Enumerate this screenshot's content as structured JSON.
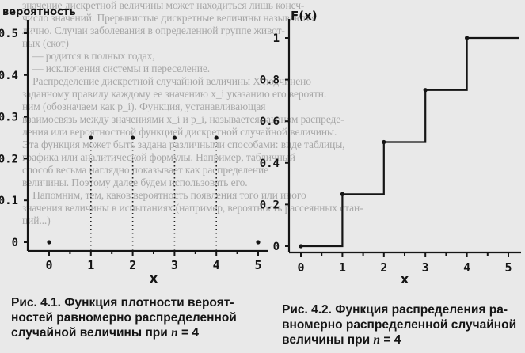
{
  "background_text": [
    "значение дискретной величины может находиться лишь конеч-",
    "число значений. Прерывистые дискретные величины называются",
    "лично. Случаи заболевания в определенной группе живот-",
    "ных (скот)",
    "    — родится в полных годах,",
    "    — исключения системы и переселение.",
    "    Распределение дискретной случайной величины Х подчинено",
    "заданному правилу каждому ее значению x_i указанию его вероятн.",
    "ним (обозначаем как p_i). Функция, устанавливающая",
    "взаимосвязь между значениями x_i и p_i, называется законом распреде-",
    "ления или вероятностной функцией дискретной случайной величины.",
    "Эта функция может быть задана различными способами: виде таблицы,",
    "графика или аналитической формулы. Например, табличный",
    "способ весьма наглядно показывает как распределение",
    "величины. Поэтому далее будем использовать его.",
    "    Напомним, тем, каков вероятность появления того или иного",
    "значения величины в испытаниях (например, вероятность рассеянных стан-",
    "ций...)"
  ],
  "charts": [
    {
      "type": "scatter",
      "ylabel": "вероятность",
      "xlabel": "x",
      "xlim": [
        0,
        5
      ],
      "ylim": [
        0,
        0.5
      ],
      "x_ticks": [
        "0",
        "1",
        "2",
        "3",
        "4",
        "5"
      ],
      "y_ticks": [
        "0",
        "0.1",
        "0.2",
        "0.3",
        "0.4",
        "0.5"
      ],
      "points": [
        {
          "x": 0,
          "y": 0
        },
        {
          "x": 1,
          "y": 0.25
        },
        {
          "x": 2,
          "y": 0.25
        },
        {
          "x": 3,
          "y": 0.25
        },
        {
          "x": 4,
          "y": 0.25
        },
        {
          "x": 5,
          "y": 0
        }
      ],
      "dotted_drop_lines": true,
      "caption": {
        "fig": "Рис. 4.1.",
        "text_line1": " Функция плотности вероят-",
        "text_line2": "ностей равномерно распределенной",
        "text_line3": "случайной величины при ",
        "n_var": "n",
        "n_eq": " = 4"
      }
    },
    {
      "type": "line",
      "step": true,
      "ylabel": "F(x)",
      "xlabel": "x",
      "xlim": [
        0,
        5
      ],
      "ylim": [
        0,
        1
      ],
      "x_ticks": [
        "0",
        "1",
        "2",
        "3",
        "4",
        "5"
      ],
      "y_ticks": [
        "0",
        "0.2",
        "0.4",
        "0.6",
        "0.8",
        "1"
      ],
      "points": [
        {
          "x": 0,
          "y": 0
        },
        {
          "x": 1,
          "y": 0
        },
        {
          "x": 1,
          "y": 0.25
        },
        {
          "x": 2,
          "y": 0.25
        },
        {
          "x": 2,
          "y": 0.5
        },
        {
          "x": 3,
          "y": 0.5
        },
        {
          "x": 3,
          "y": 0.75
        },
        {
          "x": 4,
          "y": 0.75
        },
        {
          "x": 4,
          "y": 1
        },
        {
          "x": 5,
          "y": 1
        }
      ],
      "markers": [
        {
          "x": 0,
          "y": 0
        },
        {
          "x": 1,
          "y": 0.25
        },
        {
          "x": 2,
          "y": 0.5
        },
        {
          "x": 3,
          "y": 0.75
        },
        {
          "x": 4,
          "y": 1
        }
      ],
      "caption": {
        "fig": "Рис. 4.2.",
        "text_line1": " Функция распределения ра-",
        "text_line2": "вномерно распределенной случайной",
        "text_line3": "величины при ",
        "n_var": "n",
        "n_eq": " = 4"
      }
    }
  ]
}
